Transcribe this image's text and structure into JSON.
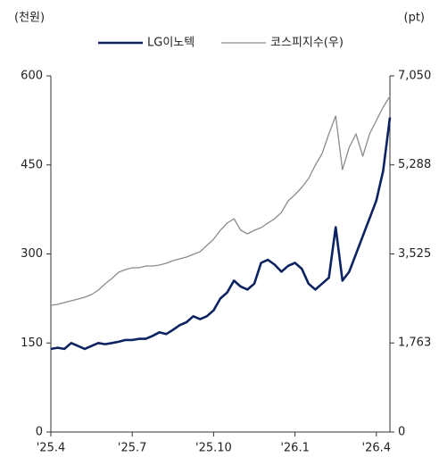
{
  "chart_data": {
    "type": "line",
    "y_label": "(천원)",
    "y2_label": "(pt)",
    "categories": [
      "'25.4",
      null,
      null,
      null,
      null,
      null,
      null,
      null,
      null,
      null,
      null,
      null,
      "'25.7",
      null,
      null,
      null,
      null,
      null,
      null,
      null,
      null,
      null,
      null,
      null,
      "'25.10",
      null,
      null,
      null,
      null,
      null,
      null,
      null,
      null,
      null,
      null,
      null,
      "'26.1",
      null,
      null,
      null,
      null,
      null,
      null,
      null,
      null,
      null,
      null,
      null,
      "'26.4",
      null,
      null
    ],
    "series": [
      {
        "name": "LG이노텍",
        "color": "#0d2361",
        "values": [
          140,
          142,
          140,
          150,
          145,
          140,
          145,
          150,
          148,
          150,
          152,
          155,
          155,
          157,
          157,
          162,
          168,
          165,
          172,
          180,
          185,
          195,
          190,
          195,
          205,
          225,
          235,
          255,
          245,
          240,
          250,
          285,
          290,
          282,
          270,
          280,
          285,
          275,
          250,
          240,
          250,
          260,
          345,
          255,
          270,
          300,
          330,
          360,
          390,
          440,
          530
        ]
      },
      {
        "name": "코스피지수(우)",
        "color": "#8c8c8c",
        "axis": "y2",
        "values": [
          2509,
          2527,
          2562,
          2597,
          2633,
          2668,
          2721,
          2809,
          2933,
          3039,
          3163,
          3216,
          3251,
          3251,
          3286,
          3286,
          3304,
          3339,
          3392,
          3428,
          3463,
          3516,
          3569,
          3693,
          3817,
          3993,
          4135,
          4223,
          3993,
          3923,
          3993,
          4046,
          4135,
          4223,
          4347,
          4576,
          4700,
          4841,
          5018,
          5283,
          5513,
          5902,
          6255,
          5195,
          5637,
          5902,
          5460,
          5902,
          6167,
          6431,
          6644
        ]
      }
    ],
    "ylim": [
      0,
      600
    ],
    "yticks": [
      0,
      150,
      300,
      450,
      600
    ],
    "y2lim": [
      0,
      7050
    ],
    "y2ticks": [
      0,
      {
        "value": 1763,
        "label": "1,763"
      },
      {
        "value": 3525,
        "label": "3,525"
      },
      {
        "value": 5288,
        "label": "5,288"
      },
      {
        "value": 7050,
        "label": "7,050"
      }
    ],
    "grid": false,
    "legend": "top"
  }
}
